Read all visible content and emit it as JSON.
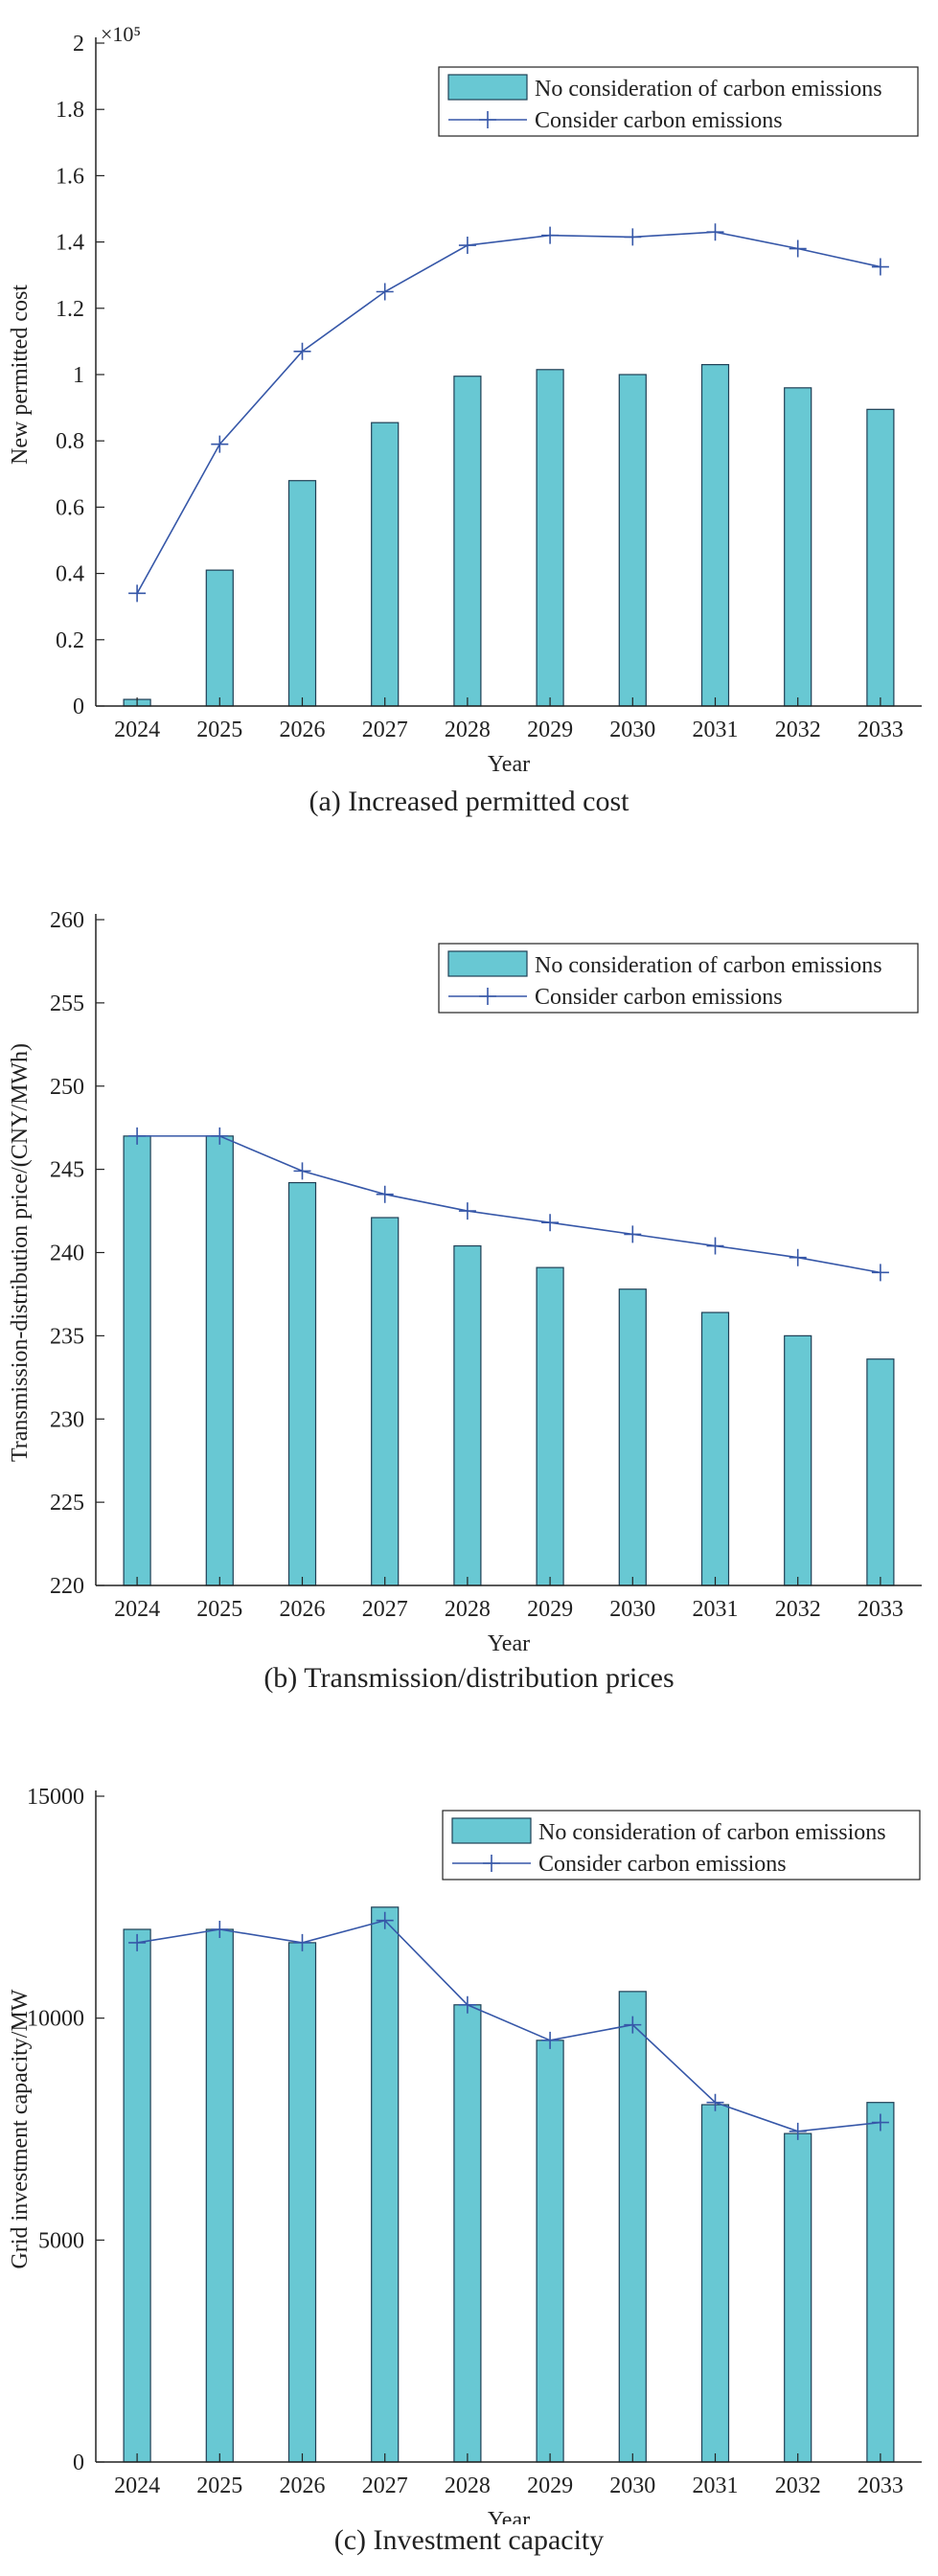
{
  "colors": {
    "bar_fill": "#68c8d3",
    "bar_stroke": "#1f3f55",
    "line": "#3657a8",
    "axis": "#222222"
  },
  "chart_data": [
    {
      "type": "bar",
      "caption": "(a) Increased permitted cost",
      "xlabel": "Year",
      "ylabel": "New permitted cost",
      "multiplier": "×10⁵",
      "ylim": [
        0,
        2
      ],
      "yticks": [
        0,
        0.2,
        0.4,
        0.6,
        0.8,
        1,
        1.2,
        1.4,
        1.6,
        1.8,
        2
      ],
      "ytick_labels": [
        "0",
        "0.2",
        "0.4",
        "0.6",
        "0.8",
        "1",
        "1.2",
        "1.4",
        "1.6",
        "1.8",
        "2"
      ],
      "categories": [
        "2024",
        "2025",
        "2026",
        "2027",
        "2028",
        "2029",
        "2030",
        "2031",
        "2032",
        "2033"
      ],
      "legend_position": "top-right",
      "grid": false,
      "series": [
        {
          "name": "No consideration of carbon emissions",
          "kind": "bar",
          "values": [
            0.02,
            0.41,
            0.68,
            0.855,
            0.995,
            1.015,
            1.0,
            1.03,
            0.96,
            0.895
          ]
        },
        {
          "name": "Consider carbon emissions",
          "kind": "line",
          "marker": "plus",
          "values": [
            0.34,
            0.79,
            1.07,
            1.25,
            1.39,
            1.42,
            1.415,
            1.43,
            1.38,
            1.325
          ]
        }
      ]
    },
    {
      "type": "bar",
      "caption": "(b) Transmission/distribution prices",
      "xlabel": "Year",
      "ylabel": "Transmission-distribution price/(CNY/MWh)",
      "ylim": [
        220,
        260
      ],
      "yticks": [
        220,
        225,
        230,
        235,
        240,
        245,
        250,
        255,
        260
      ],
      "ytick_labels": [
        "220",
        "225",
        "230",
        "235",
        "240",
        "245",
        "250",
        "255",
        "260"
      ],
      "categories": [
        "2024",
        "2025",
        "2026",
        "2027",
        "2028",
        "2029",
        "2030",
        "2031",
        "2032",
        "2033"
      ],
      "legend_position": "top-right",
      "grid": false,
      "series": [
        {
          "name": "No consideration of carbon emissions",
          "kind": "bar",
          "values": [
            247.0,
            247.0,
            244.2,
            242.1,
            240.4,
            239.1,
            237.8,
            236.4,
            235.0,
            233.6
          ]
        },
        {
          "name": "Consider carbon emissions",
          "kind": "line",
          "marker": "plus",
          "values": [
            247.0,
            247.0,
            244.9,
            243.5,
            242.5,
            241.8,
            241.1,
            240.4,
            239.7,
            238.8
          ]
        }
      ]
    },
    {
      "type": "bar",
      "caption": "(c) Investment capacity",
      "xlabel": "Year",
      "ylabel": "Grid investment capacity/MW",
      "ylim": [
        0,
        15000
      ],
      "yticks": [
        0,
        5000,
        10000,
        15000
      ],
      "ytick_labels": [
        "0",
        "5000",
        "10000",
        "15000"
      ],
      "categories": [
        "2024",
        "2025",
        "2026",
        "2027",
        "2028",
        "2029",
        "2030",
        "2031",
        "2032",
        "2033"
      ],
      "legend_position": "top-right",
      "grid": false,
      "series": [
        {
          "name": "No consideration of carbon emissions",
          "kind": "bar",
          "values": [
            12000,
            12000,
            11700,
            12500,
            10300,
            9500,
            10600,
            8050,
            7400,
            8100
          ]
        },
        {
          "name": "Consider carbon emissions",
          "kind": "line",
          "marker": "plus",
          "values": [
            11700,
            12000,
            11700,
            12200,
            10300,
            9500,
            9850,
            8100,
            7450,
            7650
          ]
        }
      ]
    }
  ]
}
